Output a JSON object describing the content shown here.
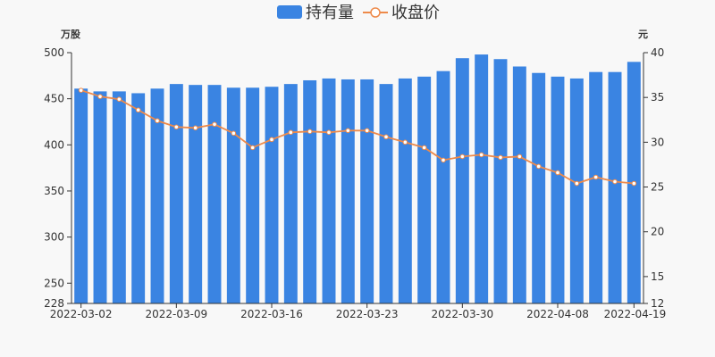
{
  "chart_data": {
    "type": "bar",
    "legend": {
      "position": "top-center",
      "items": [
        {
          "name": "持有量",
          "kind": "bar",
          "color": "#3a84e2"
        },
        {
          "name": "收盘价",
          "kind": "line",
          "color": "#ee8a4a"
        }
      ]
    },
    "left_axis": {
      "unit": "万股",
      "ylim": [
        228,
        500
      ],
      "ticks": [
        228,
        250,
        300,
        350,
        400,
        450,
        500
      ]
    },
    "right_axis": {
      "unit": "元",
      "ylim": [
        12,
        40
      ],
      "ticks": [
        12,
        15,
        20,
        25,
        30,
        35,
        40
      ]
    },
    "x_tick_labels": [
      "2022-03-02",
      "2022-03-09",
      "2022-03-16",
      "2022-03-23",
      "2022-03-30",
      "2022-04-08",
      "2022-04-19"
    ],
    "x_tick_indices": [
      0,
      5,
      10,
      15,
      20,
      25,
      29
    ],
    "series": [
      {
        "name": "持有量",
        "type": "bar",
        "axis": "left",
        "values": [
          461,
          458,
          458,
          456,
          461,
          466,
          465,
          465,
          462,
          462,
          463,
          466,
          470,
          472,
          471,
          471,
          466,
          472,
          474,
          480,
          494,
          498,
          493,
          485,
          478,
          474,
          472,
          479,
          479,
          490
        ]
      },
      {
        "name": "收盘价",
        "type": "line",
        "axis": "right",
        "values": [
          35.8,
          35.1,
          34.8,
          33.6,
          32.4,
          31.7,
          31.6,
          32.0,
          31.0,
          29.4,
          30.3,
          31.1,
          31.2,
          31.1,
          31.3,
          31.3,
          30.6,
          30.0,
          29.4,
          28.0,
          28.4,
          28.6,
          28.3,
          28.4,
          27.3,
          26.6,
          25.4,
          26.1,
          25.6,
          25.4
        ]
      }
    ]
  }
}
